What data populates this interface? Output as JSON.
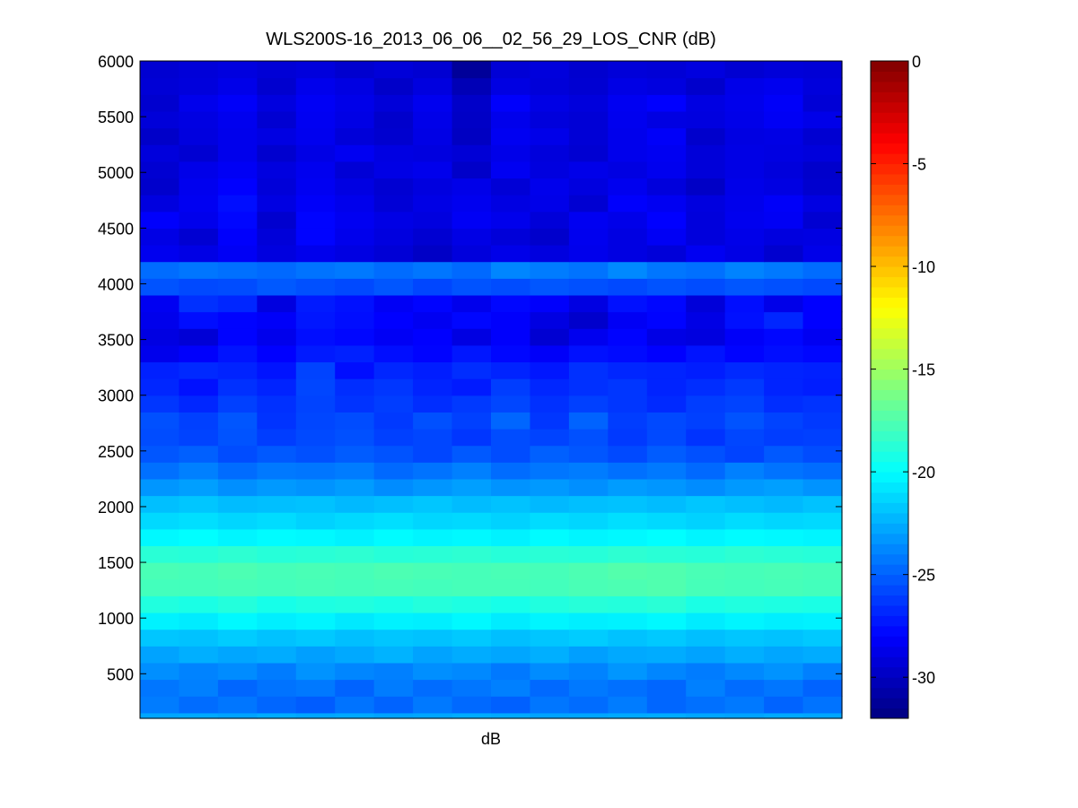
{
  "chart_data": {
    "type": "heatmap",
    "title": "WLS200S-16_2013_06_06__02_56_29_LOS_CNR (dB)",
    "xlabel": "dB",
    "ylabel": "",
    "ylim": [
      100,
      6000
    ],
    "yticks": [
      500,
      1000,
      1500,
      2000,
      2500,
      3000,
      3500,
      4000,
      4500,
      5000,
      5500,
      6000
    ],
    "colorbar": {
      "colormap": "jet",
      "clim": [
        -32,
        0
      ],
      "ticks": [
        0,
        -5,
        -10,
        -15,
        -20,
        -25,
        -30
      ]
    },
    "grid": false,
    "columns": 18,
    "rows": [
      {
        "y0": 100,
        "y1": 150,
        "values": [
          -22.8,
          -22.7,
          -22.9,
          -22.6,
          -22.8,
          -22.7,
          -22.9,
          -22.8,
          -22.6,
          -22.7,
          -22.9,
          -22.8,
          -22.7,
          -22.6,
          -22.8,
          -22.9,
          -22.7,
          -22.8
        ]
      },
      {
        "y0": 150,
        "y1": 300,
        "values": [
          -24.1,
          -24.6,
          -24.3,
          -24.8,
          -25.1,
          -24.4,
          -24.9,
          -24.2,
          -24.7,
          -25.0,
          -24.3,
          -24.6,
          -24.1,
          -24.8,
          -24.5,
          -24.2,
          -24.9,
          -24.4
        ]
      },
      {
        "y0": 300,
        "y1": 450,
        "values": [
          -24.3,
          -24.0,
          -24.8,
          -24.4,
          -24.2,
          -24.9,
          -24.1,
          -24.6,
          -24.3,
          -24.0,
          -24.7,
          -24.2,
          -24.5,
          -24.8,
          -24.0,
          -24.6,
          -24.3,
          -24.9
        ]
      },
      {
        "y0": 450,
        "y1": 600,
        "values": [
          -23.5,
          -23.9,
          -23.6,
          -24.1,
          -23.4,
          -23.8,
          -24.0,
          -23.5,
          -23.7,
          -24.2,
          -23.6,
          -23.9,
          -23.3,
          -23.8,
          -24.1,
          -23.7,
          -23.4,
          -24.0
        ]
      },
      {
        "y0": 600,
        "y1": 750,
        "values": [
          -22.9,
          -22.5,
          -22.8,
          -22.6,
          -23.0,
          -22.7,
          -22.4,
          -22.9,
          -22.6,
          -22.8,
          -22.5,
          -23.0,
          -22.7,
          -22.6,
          -22.9,
          -22.5,
          -22.8,
          -22.6
        ]
      },
      {
        "y0": 750,
        "y1": 900,
        "values": [
          -21.8,
          -21.9,
          -21.6,
          -21.9,
          -21.7,
          -22.0,
          -21.8,
          -21.9,
          -21.7,
          -22.0,
          -21.8,
          -21.6,
          -21.9,
          -21.7,
          -22.0,
          -21.8,
          -21.9,
          -21.7
        ]
      },
      {
        "y0": 900,
        "y1": 1050,
        "values": [
          -20.4,
          -20.6,
          -20.2,
          -20.5,
          -20.3,
          -20.7,
          -20.4,
          -20.5,
          -20.2,
          -20.6,
          -20.3,
          -20.5,
          -20.4,
          -20.2,
          -20.6,
          -20.3,
          -20.5,
          -20.4
        ]
      },
      {
        "y0": 1050,
        "y1": 1200,
        "values": [
          -19.0,
          -19.2,
          -18.9,
          -19.3,
          -19.1,
          -19.0,
          -19.2,
          -18.9,
          -19.1,
          -19.3,
          -19.0,
          -18.8,
          -18.9,
          -18.7,
          -19.2,
          -19.0,
          -19.1,
          -19.2
        ]
      },
      {
        "y0": 1200,
        "y1": 1350,
        "values": [
          -17.9,
          -17.9,
          -17.8,
          -17.9,
          -17.8,
          -17.9,
          -17.8,
          -17.9,
          -17.8,
          -17.8,
          -17.9,
          -17.7,
          -17.6,
          -17.5,
          -17.8,
          -17.9,
          -17.8,
          -17.9
        ]
      },
      {
        "y0": 1350,
        "y1": 1500,
        "values": [
          -17.7,
          -17.8,
          -17.6,
          -17.8,
          -17.7,
          -17.8,
          -17.6,
          -17.7,
          -17.8,
          -17.7,
          -17.8,
          -17.6,
          -17.4,
          -17.5,
          -17.7,
          -17.8,
          -17.7,
          -17.8
        ]
      },
      {
        "y0": 1500,
        "y1": 1650,
        "values": [
          -18.7,
          -18.8,
          -18.6,
          -18.8,
          -18.7,
          -18.6,
          -18.8,
          -18.7,
          -18.6,
          -18.8,
          -18.7,
          -18.8,
          -18.6,
          -18.7,
          -18.8,
          -18.6,
          -18.7,
          -18.8
        ]
      },
      {
        "y0": 1650,
        "y1": 1800,
        "values": [
          -20.2,
          -20.0,
          -20.3,
          -20.1,
          -20.2,
          -20.4,
          -20.1,
          -20.3,
          -20.2,
          -20.4,
          -20.1,
          -20.3,
          -20.2,
          -20.0,
          -20.3,
          -20.1,
          -20.2,
          -20.3
        ]
      },
      {
        "y0": 1800,
        "y1": 1950,
        "values": [
          -21.2,
          -21.0,
          -21.3,
          -21.1,
          -21.4,
          -21.2,
          -21.0,
          -21.3,
          -21.2,
          -21.4,
          -21.1,
          -21.3,
          -21.0,
          -21.2,
          -21.4,
          -21.1,
          -21.3,
          -21.2
        ]
      },
      {
        "y0": 1950,
        "y1": 2100,
        "values": [
          -22.0,
          -21.8,
          -22.1,
          -22.0,
          -21.9,
          -22.2,
          -22.0,
          -21.8,
          -22.1,
          -21.9,
          -22.2,
          -22.0,
          -21.9,
          -22.1,
          -21.8,
          -22.0,
          -22.2,
          -21.9
        ]
      },
      {
        "y0": 2100,
        "y1": 2250,
        "values": [
          -23.3,
          -23.0,
          -23.5,
          -23.2,
          -23.4,
          -23.1,
          -23.6,
          -23.3,
          -23.0,
          -23.4,
          -23.2,
          -23.5,
          -23.1,
          -23.3,
          -23.6,
          -23.2,
          -23.0,
          -23.4
        ]
      },
      {
        "y0": 2250,
        "y1": 2400,
        "values": [
          -24.5,
          -24.0,
          -24.6,
          -24.2,
          -24.3,
          -24.1,
          -24.7,
          -24.4,
          -24.0,
          -24.6,
          -24.3,
          -24.1,
          -24.5,
          -24.2,
          -24.7,
          -24.0,
          -24.4,
          -24.6
        ]
      },
      {
        "y0": 2400,
        "y1": 2550,
        "values": [
          -25.3,
          -25.0,
          -25.6,
          -25.2,
          -25.5,
          -25.1,
          -25.4,
          -25.8,
          -25.2,
          -25.6,
          -25.0,
          -25.3,
          -25.7,
          -25.1,
          -25.5,
          -25.9,
          -25.2,
          -25.6
        ]
      },
      {
        "y0": 2550,
        "y1": 2700,
        "values": [
          -25.6,
          -25.9,
          -25.4,
          -26.1,
          -25.7,
          -25.5,
          -26.0,
          -25.8,
          -26.3,
          -25.6,
          -25.9,
          -25.5,
          -26.2,
          -25.7,
          -26.4,
          -25.8,
          -26.1,
          -26.0
        ]
      },
      {
        "y0": 2700,
        "y1": 2850,
        "values": [
          -25.5,
          -26.0,
          -25.3,
          -26.4,
          -25.8,
          -25.6,
          -26.2,
          -25.5,
          -26.0,
          -24.8,
          -26.3,
          -24.9,
          -26.1,
          -25.7,
          -26.0,
          -25.4,
          -25.9,
          -26.2
        ]
      },
      {
        "y0": 2850,
        "y1": 3000,
        "values": [
          -26.3,
          -26.8,
          -26.0,
          -26.5,
          -25.9,
          -26.4,
          -26.1,
          -26.6,
          -26.2,
          -25.8,
          -26.5,
          -26.0,
          -26.3,
          -26.7,
          -26.1,
          -25.9,
          -26.6,
          -26.4
        ]
      },
      {
        "y0": 3000,
        "y1": 3150,
        "values": [
          -26.8,
          -27.5,
          -26.5,
          -26.9,
          -25.8,
          -26.6,
          -26.3,
          -26.9,
          -27.2,
          -26.1,
          -26.8,
          -26.5,
          -26.3,
          -26.9,
          -26.6,
          -26.2,
          -26.9,
          -27.1
        ]
      },
      {
        "y0": 3150,
        "y1": 3300,
        "values": [
          -27.0,
          -26.7,
          -26.9,
          -27.4,
          -25.9,
          -27.6,
          -26.8,
          -27.1,
          -26.6,
          -26.9,
          -27.3,
          -26.5,
          -26.8,
          -26.9,
          -27.1,
          -26.7,
          -26.9,
          -27.0
        ]
      },
      {
        "y0": 3300,
        "y1": 3450,
        "values": [
          -28.6,
          -28.1,
          -27.4,
          -28.0,
          -27.2,
          -27.0,
          -27.6,
          -27.9,
          -27.3,
          -27.8,
          -28.2,
          -27.5,
          -27.7,
          -28.0,
          -27.4,
          -27.9,
          -27.6,
          -27.8
        ]
      },
      {
        "y0": 3450,
        "y1": 3600,
        "values": [
          -28.9,
          -29.3,
          -27.9,
          -28.6,
          -27.6,
          -27.8,
          -28.3,
          -28.0,
          -28.9,
          -28.1,
          -29.4,
          -28.5,
          -27.9,
          -28.8,
          -29.0,
          -28.2,
          -27.8,
          -28.4
        ]
      },
      {
        "y0": 3600,
        "y1": 3750,
        "values": [
          -28.6,
          -27.6,
          -27.9,
          -28.2,
          -27.3,
          -27.6,
          -28.0,
          -28.4,
          -27.8,
          -28.1,
          -28.9,
          -29.6,
          -28.3,
          -27.9,
          -28.8,
          -27.5,
          -26.8,
          -28.0
        ]
      },
      {
        "y0": 3750,
        "y1": 3900,
        "values": [
          -28.4,
          -26.5,
          -26.8,
          -29.0,
          -27.2,
          -27.5,
          -28.3,
          -27.9,
          -28.6,
          -27.8,
          -28.1,
          -28.9,
          -27.5,
          -27.8,
          -29.2,
          -27.6,
          -28.7,
          -28.0
        ]
      },
      {
        "y0": 3900,
        "y1": 4050,
        "values": [
          -25.4,
          -25.7,
          -25.6,
          -25.2,
          -25.5,
          -25.7,
          -25.3,
          -25.8,
          -25.4,
          -25.6,
          -25.3,
          -25.5,
          -25.7,
          -25.4,
          -25.6,
          -25.3,
          -25.5,
          -25.7
        ]
      },
      {
        "y0": 4050,
        "y1": 4200,
        "values": [
          -24.6,
          -24.3,
          -24.5,
          -24.7,
          -24.4,
          -24.2,
          -24.6,
          -24.3,
          -24.7,
          -23.8,
          -24.1,
          -24.4,
          -23.7,
          -24.3,
          -24.5,
          -23.9,
          -24.2,
          -24.6
        ]
      },
      {
        "y0": 4200,
        "y1": 4350,
        "values": [
          -28.5,
          -28.8,
          -28.3,
          -29.0,
          -28.6,
          -28.9,
          -29.3,
          -29.8,
          -29.1,
          -28.7,
          -29.0,
          -28.6,
          -28.9,
          -29.2,
          -28.4,
          -28.8,
          -29.5,
          -28.7
        ]
      },
      {
        "y0": 4350,
        "y1": 4500,
        "values": [
          -28.8,
          -29.4,
          -28.1,
          -29.2,
          -27.9,
          -28.6,
          -29.0,
          -29.4,
          -28.8,
          -29.2,
          -29.6,
          -28.5,
          -28.9,
          -28.3,
          -29.1,
          -28.7,
          -29.0,
          -28.9
        ]
      },
      {
        "y0": 4500,
        "y1": 4650,
        "values": [
          -28.1,
          -28.6,
          -27.8,
          -29.5,
          -27.9,
          -28.4,
          -28.8,
          -29.0,
          -28.3,
          -28.6,
          -29.2,
          -28.4,
          -28.7,
          -28.0,
          -29.1,
          -28.5,
          -28.3,
          -29.4
        ]
      },
      {
        "y0": 4650,
        "y1": 4800,
        "values": [
          -29.0,
          -28.4,
          -27.6,
          -28.9,
          -28.2,
          -28.6,
          -29.3,
          -28.8,
          -28.5,
          -28.9,
          -28.7,
          -29.4,
          -28.1,
          -28.4,
          -29.0,
          -28.6,
          -28.2,
          -28.9
        ]
      },
      {
        "y0": 4800,
        "y1": 4950,
        "values": [
          -29.6,
          -28.5,
          -28.0,
          -29.2,
          -28.4,
          -28.9,
          -29.4,
          -29.0,
          -28.7,
          -29.3,
          -28.6,
          -29.0,
          -28.5,
          -29.1,
          -29.8,
          -28.7,
          -28.9,
          -29.5
        ]
      },
      {
        "y0": 4950,
        "y1": 5100,
        "values": [
          -29.4,
          -28.7,
          -28.3,
          -29.0,
          -28.5,
          -29.3,
          -28.8,
          -28.6,
          -29.7,
          -28.4,
          -29.0,
          -28.7,
          -28.9,
          -28.5,
          -29.2,
          -28.8,
          -29.1,
          -29.6
        ]
      },
      {
        "y0": 5100,
        "y1": 5250,
        "values": [
          -29.1,
          -29.4,
          -28.6,
          -29.5,
          -28.8,
          -28.4,
          -28.9,
          -29.0,
          -29.3,
          -28.7,
          -29.1,
          -29.4,
          -28.6,
          -28.4,
          -29.2,
          -28.8,
          -28.9,
          -29.1
        ]
      },
      {
        "y0": 5250,
        "y1": 5400,
        "values": [
          -29.7,
          -29.0,
          -28.6,
          -28.9,
          -28.5,
          -29.2,
          -29.5,
          -28.8,
          -29.9,
          -28.4,
          -28.7,
          -29.3,
          -28.6,
          -28.2,
          -29.6,
          -28.9,
          -28.8,
          -29.4
        ]
      },
      {
        "y0": 5400,
        "y1": 5550,
        "values": [
          -29.2,
          -28.9,
          -28.5,
          -29.4,
          -28.4,
          -28.8,
          -29.6,
          -28.7,
          -29.8,
          -28.6,
          -29.1,
          -29.3,
          -28.5,
          -28.9,
          -29.0,
          -28.7,
          -28.3,
          -28.7
        ]
      },
      {
        "y0": 5550,
        "y1": 5700,
        "values": [
          -29.5,
          -28.6,
          -28.2,
          -29.0,
          -28.3,
          -28.7,
          -29.2,
          -28.5,
          -29.7,
          -28.1,
          -28.8,
          -29.1,
          -28.4,
          -28.0,
          -28.9,
          -28.6,
          -28.2,
          -29.3
        ]
      },
      {
        "y0": 5700,
        "y1": 5850,
        "values": [
          -29.3,
          -29.1,
          -28.7,
          -29.5,
          -28.6,
          -28.9,
          -29.7,
          -29.0,
          -30.3,
          -28.9,
          -29.2,
          -29.4,
          -28.8,
          -29.0,
          -29.6,
          -28.7,
          -28.5,
          -29.1
        ]
      },
      {
        "y0": 5850,
        "y1": 6000,
        "values": [
          -29.4,
          -29.2,
          -29.0,
          -29.3,
          -29.1,
          -29.5,
          -29.2,
          -29.4,
          -31.2,
          -29.3,
          -29.1,
          -29.5,
          -29.2,
          -29.3,
          -29.0,
          -29.4,
          -29.2,
          -29.3
        ]
      }
    ]
  }
}
